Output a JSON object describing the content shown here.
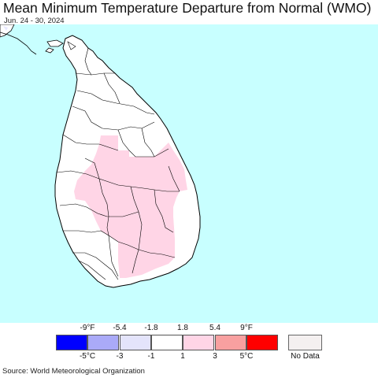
{
  "header": {
    "title": "Mean Minimum Temperature Departure from Normal (WMO)",
    "date_range": "Jun. 24 - 30, 2024"
  },
  "map": {
    "ocean_color": "#c8ffff",
    "land_color": "#ffffff",
    "anomaly_zone_color": "#ffd5e6",
    "border_color": "#000000"
  },
  "legend": {
    "fahrenheit_ticks": [
      "-9°F",
      "-5.4",
      "-1.8",
      "1.8",
      "5.4",
      "9°F"
    ],
    "celsius_ticks": [
      "-5°C",
      "-3",
      "-1",
      "1",
      "3",
      "5°C"
    ],
    "bins": [
      {
        "color": "#0000ff"
      },
      {
        "color": "#aaaaf8"
      },
      {
        "color": "#e4e4fb"
      },
      {
        "color": "#ffffff"
      },
      {
        "color": "#ffd5e6"
      },
      {
        "color": "#f8a0a0"
      },
      {
        "color": "#ff0000"
      }
    ],
    "no_data_label": "No Data",
    "no_data_color": "#f4f0f0"
  },
  "footer": {
    "source": "Source: World Meteorological Organization"
  }
}
